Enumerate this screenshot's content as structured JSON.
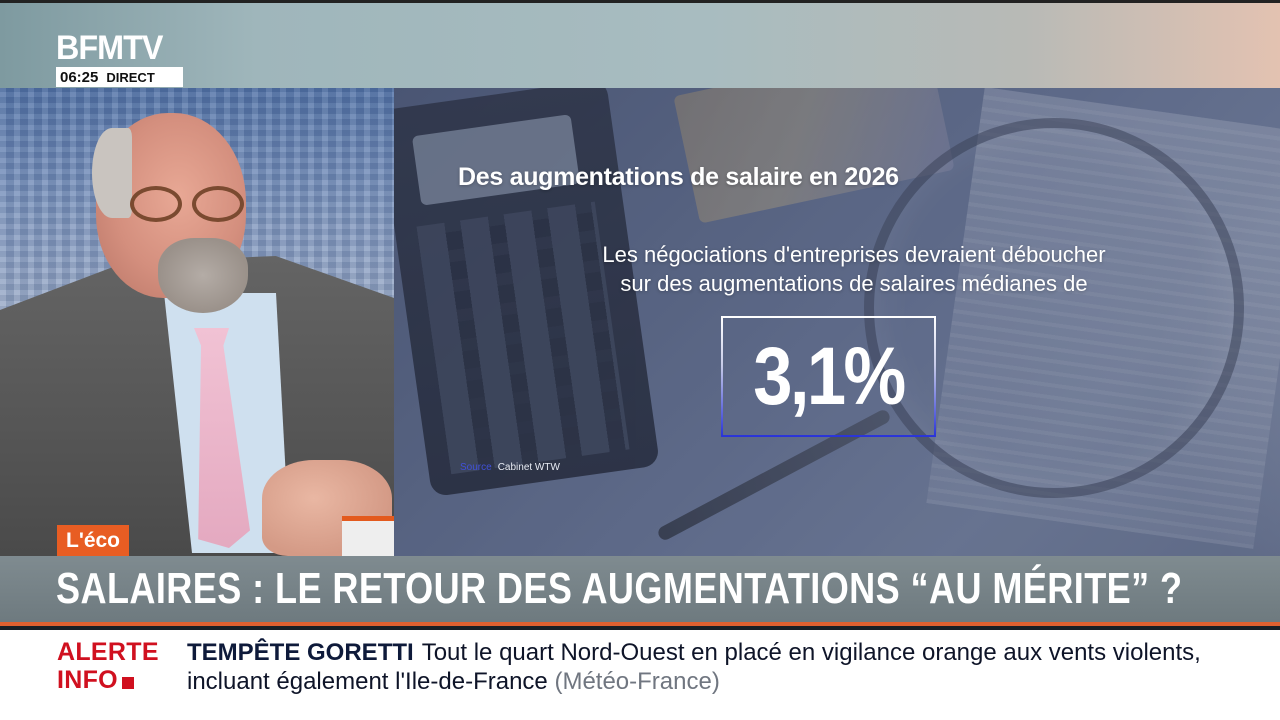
{
  "channel": {
    "logo": "BFMTV",
    "time": "06:25",
    "live_label": "DIRECT"
  },
  "segment": {
    "tag": "L'éco"
  },
  "infographic": {
    "title": "Des augmentations de salaire en 2026",
    "subtitle_line1": "Les négociations d'entreprises devraient déboucher",
    "subtitle_line2": "sur des augmentations de salaires médianes de",
    "value": "3,1%",
    "source_label": "Source",
    "source_value": "Cabinet WTW"
  },
  "headline": {
    "text": "SALAIRES : LE RETOUR DES AUGMENTATIONS “AU MÉRITE” ?"
  },
  "ticker": {
    "alert_line1": "ALERTE",
    "alert_line2": "INFO",
    "headline": "TEMPÊTE GORETTI",
    "body": "Tout le quart Nord-Ouest en placé en vigilance orange aux vents violents, incluant également l'Ile-de-France",
    "source": "(Météo-France)"
  },
  "colors": {
    "brand_orange": "#e85d23",
    "alert_red": "#d0101f",
    "headline_bar": "#76838a",
    "box_accent_blue": "#2a34d8"
  }
}
